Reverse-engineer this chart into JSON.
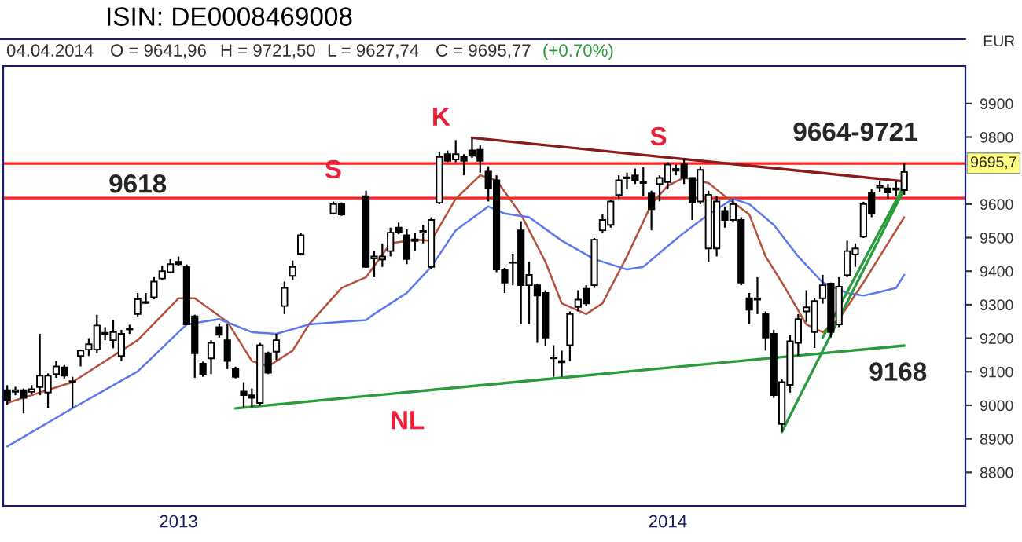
{
  "chart_data": {
    "type": "candlestick",
    "title": "ISIN: DE0008469008",
    "ylabel": "EUR",
    "categories": [
      null,
      null,
      null,
      null,
      null,
      null,
      null,
      null,
      null,
      null,
      null,
      null,
      null,
      null,
      null,
      null,
      null,
      null,
      null,
      null,
      null,
      "2013",
      null,
      null,
      null,
      null,
      null,
      null,
      null,
      null,
      null,
      null,
      null,
      null,
      null,
      null,
      null,
      null,
      null,
      null,
      null,
      null,
      null,
      null,
      null,
      null,
      null,
      null,
      null,
      null,
      null,
      null,
      null,
      null,
      null,
      null,
      null,
      null,
      null,
      null,
      null,
      null,
      null,
      null,
      null,
      null,
      null,
      null,
      null,
      null,
      null,
      null,
      null,
      null,
      null,
      null,
      null,
      null,
      null,
      null,
      null,
      "2014",
      null,
      null,
      null,
      null,
      null,
      null,
      null,
      null,
      null,
      null,
      null,
      null,
      null,
      null,
      null,
      null,
      null,
      null,
      null,
      null,
      null,
      null,
      null,
      null,
      null,
      null,
      null,
      null,
      null
    ],
    "ohlc": [
      [
        9045,
        9060,
        9000,
        9015
      ],
      [
        9040,
        9055,
        9030,
        9045
      ],
      [
        9045,
        9050,
        8976,
        9022
      ],
      [
        9040,
        9060,
        9035,
        9048
      ],
      [
        9054,
        9213,
        9030,
        9088
      ],
      [
        9038,
        9095,
        8992,
        9088
      ],
      [
        9093,
        9132,
        9082,
        9116
      ],
      [
        9113,
        9120,
        9080,
        9088
      ],
      [
        9070,
        9085,
        8992,
        9072
      ],
      [
        9147,
        9166,
        9116,
        9163
      ],
      [
        9166,
        9200,
        9147,
        9182
      ],
      [
        9166,
        9270,
        9155,
        9238
      ],
      [
        9213,
        9233,
        9194,
        9216
      ],
      [
        9194,
        9254,
        9170,
        9218
      ],
      [
        9147,
        9225,
        9132,
        9213
      ],
      [
        9226,
        9240,
        9213,
        9228
      ],
      [
        9272,
        9335,
        9265,
        9316
      ],
      [
        9305,
        9335,
        9303,
        9308
      ],
      [
        9322,
        9382,
        9316,
        9369
      ],
      [
        9378,
        9416,
        9374,
        9400
      ],
      [
        9397,
        9436,
        9394,
        9421
      ],
      [
        9428,
        9444,
        9416,
        9421
      ],
      [
        9413,
        9420,
        9241,
        9241
      ],
      [
        9265,
        9270,
        9082,
        9155
      ],
      [
        9124,
        9130,
        9085,
        9093
      ],
      [
        9140,
        9194,
        9093,
        9186
      ],
      [
        9233,
        9244,
        9202,
        9210
      ],
      [
        9194,
        9241,
        9108,
        9132
      ],
      [
        9108,
        9115,
        9080,
        9085
      ],
      [
        9041,
        9069,
        8994,
        9030
      ],
      [
        9030,
        9050,
        8994,
        9022
      ],
      [
        9007,
        9186,
        8999,
        9179
      ],
      [
        9155,
        9160,
        9093,
        9097
      ],
      [
        9160,
        9213,
        9135,
        9194
      ],
      [
        9296,
        9369,
        9272,
        9350
      ],
      [
        9386,
        9432,
        9374,
        9413
      ],
      [
        9452,
        9515,
        9447,
        9507
      ],
      null,
      null,
      null,
      [
        9572,
        9608,
        9569,
        9600
      ],
      [
        9600,
        9605,
        9565,
        9569
      ],
      null,
      null,
      [
        9624,
        9640,
        9410,
        9413
      ],
      [
        9438,
        9460,
        9382,
        9444
      ],
      [
        9435,
        9483,
        9413,
        9444
      ],
      [
        9460,
        9530,
        9444,
        9515
      ],
      [
        9530,
        9545,
        9510,
        9515
      ],
      [
        9507,
        9525,
        9421,
        9436
      ],
      [
        9490,
        9515,
        9460,
        9495
      ],
      [
        9515,
        9538,
        9483,
        9520
      ],
      [
        9413,
        9561,
        9405,
        9553
      ],
      [
        9604,
        9757,
        9600,
        9741
      ],
      [
        9749,
        9760,
        9725,
        9729
      ],
      [
        9733,
        9791,
        9725,
        9749
      ],
      [
        9741,
        9749,
        9686,
        9729
      ],
      [
        9760,
        9796,
        9738,
        9744
      ],
      [
        9762,
        9775,
        9694,
        9729
      ],
      [
        9697,
        9713,
        9608,
        9647
      ],
      [
        9671,
        9686,
        9397,
        9405
      ],
      [
        9405,
        9410,
        9335,
        9366
      ],
      [
        9425,
        9452,
        9358,
        9425
      ],
      [
        9522,
        9549,
        9241,
        9358
      ],
      [
        9358,
        9428,
        9241,
        9389
      ],
      [
        9358,
        9363,
        9186,
        9327
      ],
      [
        9335,
        9343,
        9178,
        9202
      ],
      [
        9140,
        9179,
        9085,
        9140
      ],
      [
        9128,
        9163,
        9085,
        9132
      ],
      [
        9179,
        9280,
        9132,
        9272
      ],
      [
        9293,
        9343,
        9280,
        9315
      ],
      [
        9347,
        9358,
        9296,
        9304
      ],
      [
        9358,
        9499,
        9350,
        9494
      ],
      [
        9522,
        9569,
        9514,
        9553
      ],
      [
        9538,
        9613,
        9530,
        9608
      ],
      [
        9627,
        9686,
        9616,
        9671
      ],
      [
        9677,
        9694,
        9644,
        9680
      ],
      [
        9686,
        9706,
        9660,
        9671
      ],
      [
        9663,
        9710,
        9624,
        9666
      ],
      [
        9632,
        9640,
        9522,
        9585
      ],
      [
        9660,
        9686,
        9608,
        9678
      ],
      [
        9666,
        9725,
        9644,
        9718
      ],
      [
        9700,
        9718,
        9686,
        9705
      ],
      [
        9718,
        9733,
        9660,
        9678
      ],
      [
        9678,
        9680,
        9553,
        9604
      ],
      [
        9608,
        9713,
        9600,
        9702
      ],
      [
        9468,
        9640,
        9428,
        9628
      ],
      [
        9468,
        9624,
        9444,
        9608
      ],
      [
        9580,
        9593,
        9530,
        9553
      ],
      [
        9553,
        9616,
        9545,
        9600
      ],
      [
        9553,
        9561,
        9358,
        9366
      ],
      [
        9319,
        9335,
        9241,
        9285
      ],
      [
        9315,
        9382,
        9272,
        9319
      ],
      [
        9272,
        9280,
        9163,
        9202
      ],
      [
        9213,
        9225,
        9022,
        9030
      ],
      [
        8944,
        9077,
        8921,
        9069
      ],
      [
        9061,
        9210,
        9038,
        9191
      ],
      [
        9186,
        9272,
        9147,
        9257
      ],
      [
        9280,
        9343,
        9249,
        9292
      ],
      [
        9218,
        9319,
        9171,
        9311
      ],
      [
        9319,
        9389,
        9303,
        9358
      ],
      [
        9363,
        9366,
        9202,
        9218
      ],
      [
        9241,
        9382,
        9233,
        9354
      ],
      [
        9388,
        9491,
        9382,
        9460
      ],
      [
        9450,
        9483,
        9413,
        9468
      ],
      [
        9503,
        9607,
        9499,
        9600
      ],
      [
        9635,
        9644,
        9561,
        9572
      ],
      [
        9650,
        9670,
        9635,
        9655
      ],
      [
        9647,
        9660,
        9616,
        9635
      ],
      [
        9643,
        9670,
        9624,
        9647
      ],
      [
        9642,
        9722,
        9628,
        9696
      ]
    ],
    "series": [
      {
        "type": "line",
        "color": "#b5503a",
        "values": [
          9007,
          null,
          null,
          null,
          null,
          null,
          null,
          null,
          9069,
          null,
          null,
          null,
          null,
          null,
          null,
          null,
          9194,
          null,
          null,
          null,
          null,
          9319,
          null,
          9319,
          null,
          null,
          null,
          9249,
          null,
          null,
          9132,
          null,
          9116,
          null,
          null,
          9163,
          null,
          9241,
          null,
          null,
          null,
          9350,
          null,
          null,
          9382,
          null,
          null,
          9483,
          null,
          null,
          9494,
          null,
          9491,
          null,
          null,
          9616,
          null,
          null,
          9686,
          null,
          9671,
          null,
          null,
          9569,
          null,
          null,
          9428,
          null,
          9304,
          null,
          null,
          9272,
          null,
          9304,
          null,
          null,
          9444,
          null,
          null,
          9600,
          null,
          9655,
          null,
          9679,
          null,
          null,
          9663,
          null,
          9624,
          null,
          null,
          9569,
          null,
          9444,
          null,
          9366,
          null,
          null,
          9241,
          null,
          9218,
          null,
          9257,
          null,
          null,
          9366,
          null,
          9444,
          null,
          null,
          9561
        ]
      },
      {
        "type": "line",
        "color": "#5a78f0",
        "values": [
          8877,
          null,
          null,
          null,
          null,
          null,
          null,
          null,
          8991,
          null,
          null,
          null,
          null,
          null,
          null,
          null,
          9101,
          null,
          null,
          null,
          null,
          9218,
          9241,
          null,
          null,
          null,
          9257,
          null,
          null,
          null,
          9218,
          null,
          null,
          9213,
          null,
          null,
          null,
          9241,
          null,
          null,
          null,
          9249,
          null,
          null,
          9254,
          9272,
          null,
          null,
          null,
          9335,
          null,
          null,
          9413,
          null,
          null,
          9522,
          null,
          null,
          null,
          9593,
          null,
          9572,
          null,
          null,
          9561,
          null,
          null,
          null,
          9491,
          null,
          null,
          null,
          9436,
          null,
          null,
          null,
          9405,
          null,
          9413,
          null,
          null,
          9475,
          null,
          9515,
          null,
          null,
          9569,
          null,
          null,
          9616,
          null,
          9600,
          null,
          null,
          9538,
          null,
          null,
          9444,
          null,
          null,
          9366,
          null,
          null,
          9335,
          null,
          9327,
          null,
          9338,
          null,
          9350,
          9389
        ]
      },
      {
        "type": "line",
        "color": "#8b1a1a",
        "values": [
          null,
          null,
          null,
          null,
          null,
          null,
          null,
          null,
          null,
          null,
          null,
          null,
          null,
          null,
          null,
          null,
          null,
          null,
          null,
          null,
          null,
          null,
          null,
          null,
          null,
          null,
          null,
          null,
          null,
          null,
          null,
          null,
          null,
          null,
          null,
          null,
          null,
          null,
          null,
          null,
          null,
          null,
          null,
          null,
          null,
          null,
          null,
          null,
          null,
          null,
          null,
          null,
          null,
          null,
          null,
          null,
          null,
          9798,
          null,
          null,
          null,
          null,
          null,
          null,
          null,
          null,
          null,
          null,
          null,
          null,
          null,
          null,
          null,
          null,
          null,
          null,
          null,
          null,
          null,
          null,
          null,
          null,
          null,
          null,
          null,
          null,
          null,
          null,
          null,
          null,
          null,
          null,
          null,
          null,
          null,
          null,
          null,
          null,
          null,
          null,
          null,
          null,
          null,
          null,
          null,
          null,
          null,
          null,
          null,
          null,
          9668
        ]
      },
      {
        "type": "line",
        "color": "#2a9a3a",
        "values": [
          null,
          null,
          null,
          null,
          null,
          null,
          null,
          null,
          null,
          null,
          null,
          null,
          null,
          null,
          null,
          null,
          null,
          null,
          null,
          null,
          null,
          null,
          null,
          null,
          null,
          null,
          null,
          null,
          8991,
          null,
          null,
          null,
          null,
          null,
          null,
          null,
          null,
          null,
          null,
          null,
          null,
          null,
          null,
          null,
          null,
          null,
          null,
          null,
          null,
          null,
          null,
          null,
          null,
          null,
          null,
          null,
          null,
          null,
          null,
          null,
          null,
          null,
          null,
          null,
          null,
          null,
          null,
          null,
          null,
          null,
          null,
          null,
          null,
          null,
          null,
          null,
          null,
          null,
          null,
          null,
          null,
          null,
          null,
          null,
          null,
          null,
          null,
          null,
          null,
          null,
          null,
          null,
          null,
          null,
          null,
          null,
          null,
          null,
          null,
          null,
          null,
          null,
          null,
          null,
          null,
          null,
          null,
          null,
          null,
          null,
          9178
        ]
      },
      {
        "type": "line",
        "color": "#2a9a3a",
        "values": [
          null,
          null,
          null,
          null,
          null,
          null,
          null,
          null,
          null,
          null,
          null,
          null,
          null,
          null,
          null,
          null,
          null,
          null,
          null,
          null,
          null,
          null,
          null,
          null,
          null,
          null,
          null,
          null,
          null,
          null,
          null,
          null,
          null,
          null,
          null,
          null,
          null,
          null,
          null,
          null,
          null,
          null,
          null,
          null,
          null,
          null,
          null,
          null,
          null,
          null,
          null,
          null,
          null,
          null,
          null,
          null,
          null,
          null,
          null,
          null,
          null,
          null,
          null,
          null,
          null,
          null,
          null,
          null,
          null,
          null,
          null,
          null,
          null,
          null,
          null,
          null,
          null,
          null,
          null,
          null,
          null,
          null,
          null,
          null,
          null,
          null,
          null,
          null,
          null,
          null,
          null,
          null,
          null,
          null,
          null,
          8921,
          null,
          null,
          null,
          null,
          null,
          null,
          null,
          null,
          null,
          null,
          null,
          null,
          null,
          null,
          9645
        ]
      },
      {
        "type": "line",
        "color": "#2a9a3a",
        "values": [
          null,
          null,
          null,
          null,
          null,
          null,
          null,
          null,
          null,
          null,
          null,
          null,
          null,
          null,
          null,
          null,
          null,
          null,
          null,
          null,
          null,
          null,
          null,
          null,
          null,
          null,
          null,
          null,
          null,
          null,
          null,
          null,
          null,
          null,
          null,
          null,
          null,
          null,
          null,
          null,
          null,
          null,
          null,
          null,
          null,
          null,
          null,
          null,
          null,
          null,
          null,
          null,
          null,
          null,
          null,
          null,
          null,
          null,
          null,
          null,
          null,
          null,
          null,
          null,
          null,
          null,
          null,
          null,
          null,
          null,
          null,
          null,
          null,
          null,
          null,
          null,
          null,
          null,
          null,
          null,
          null,
          null,
          null,
          null,
          null,
          null,
          null,
          null,
          null,
          null,
          null,
          null,
          null,
          null,
          null,
          null,
          null,
          null,
          null,
          null,
          9202,
          null,
          null,
          null,
          null,
          null,
          null,
          null,
          null,
          null,
          9656
        ]
      }
    ],
    "ylim": [
      8700,
      10012
    ],
    "yticks": [
      8800,
      8900,
      9000,
      9100,
      9200,
      9300,
      9400,
      9500,
      9600,
      9800,
      9900
    ],
    "ref_lines": [
      {
        "axis": "y",
        "value": 9618,
        "label": "9618",
        "color": "#ff2020"
      },
      {
        "axis": "y",
        "value": 9721,
        "label": null,
        "color": "#ff2020"
      }
    ],
    "annotations": [
      "04.04.2014",
      "O = 9641,96",
      "H = 9721,50",
      "L = 9627,74",
      "C = 9695,77",
      "(+0.70%)",
      "S",
      "K",
      "S",
      "NL",
      {
        "text": "9664-9721",
        "y": 9721
      },
      "9168",
      "9695,7"
    ],
    "grid": false,
    "legend": false
  }
}
